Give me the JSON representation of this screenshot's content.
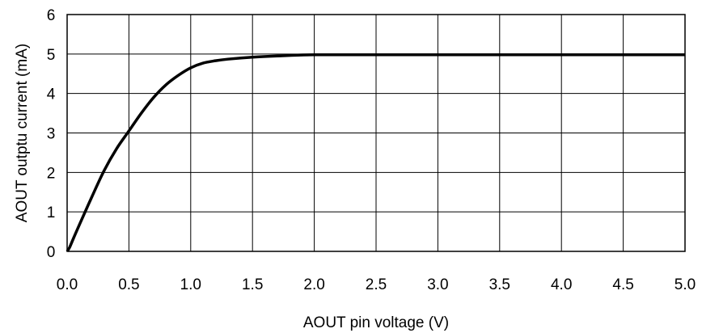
{
  "chart_data": {
    "type": "line",
    "title": "",
    "xlabel": "AOUT pin voltage (V)",
    "ylabel": "AOUT outptu current (mA)",
    "xlim": [
      0,
      5
    ],
    "ylim": [
      0,
      6
    ],
    "x_ticks": [
      "0.0",
      "0.5",
      "1.0",
      "1.5",
      "2.0",
      "2.5",
      "3.0",
      "3.5",
      "4.0",
      "4.5",
      "5.0"
    ],
    "y_ticks": [
      "0",
      "1",
      "2",
      "3",
      "4",
      "5",
      "6"
    ],
    "grid": true,
    "legend": "none",
    "series": [
      {
        "color": "#000000",
        "x": [
          0.0,
          0.02,
          0.05,
          0.1,
          0.2,
          0.3,
          0.4,
          0.5,
          0.6,
          0.7,
          0.8,
          0.9,
          1.0,
          1.1,
          1.2,
          1.3,
          1.5,
          1.7,
          2.0,
          2.5,
          3.0,
          3.5,
          4.0,
          4.5,
          5.0
        ],
        "y": [
          0.0,
          0.1,
          0.32,
          0.68,
          1.38,
          2.05,
          2.6,
          3.05,
          3.5,
          3.9,
          4.22,
          4.46,
          4.65,
          4.77,
          4.83,
          4.87,
          4.92,
          4.95,
          4.98,
          4.98,
          4.98,
          4.98,
          4.98,
          4.98,
          4.98
        ]
      }
    ]
  }
}
